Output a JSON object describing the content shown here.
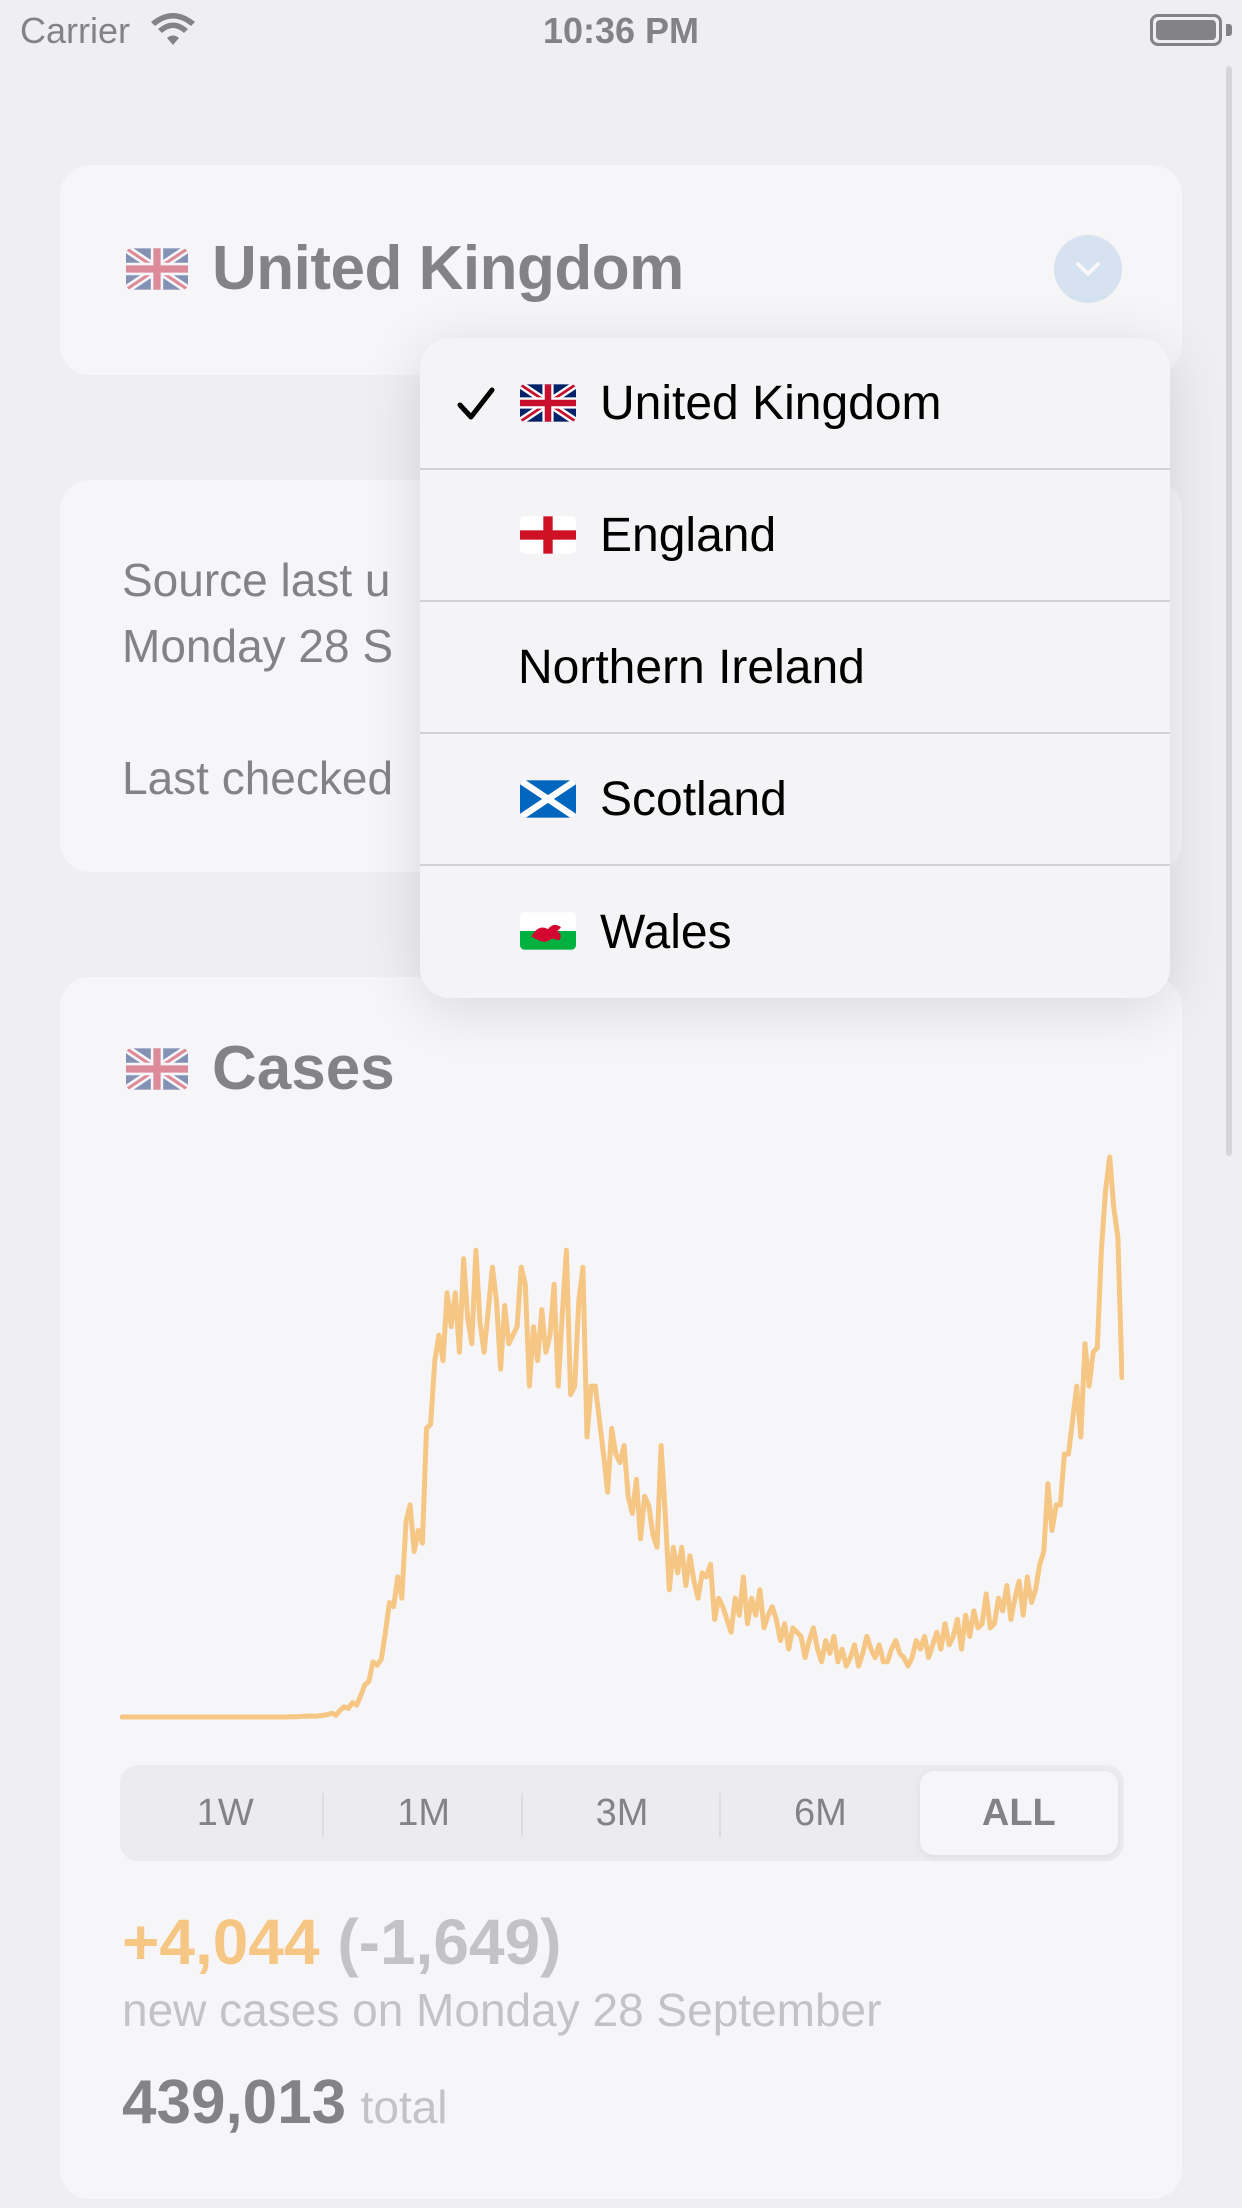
{
  "status_bar": {
    "carrier": "Carrier",
    "time": "10:36 PM"
  },
  "header": {
    "country": "United Kingdom",
    "flag_icon": "uk-flag-icon",
    "dropdown_icon": "chevron-down-icon"
  },
  "info": {
    "source_line_1": "Source last u",
    "source_line_2": "Monday 28 S",
    "last_checked": "Last checked"
  },
  "menu": {
    "items": [
      {
        "label": "United Kingdom",
        "icon": "uk-flag-icon",
        "selected": true
      },
      {
        "label": "England",
        "icon": "england-flag-icon",
        "selected": false
      },
      {
        "label": "Northern Ireland",
        "icon": "",
        "selected": false
      },
      {
        "label": "Scotland",
        "icon": "scotland-flag-icon",
        "selected": false
      },
      {
        "label": "Wales",
        "icon": "wales-flag-icon",
        "selected": false
      }
    ]
  },
  "cases": {
    "title": "Cases",
    "ranges": [
      "1W",
      "1M",
      "3M",
      "6M",
      "ALL"
    ],
    "selected_range": "ALL",
    "delta": "+4,044",
    "delta_change": "(-1,649)",
    "subtitle": "new cases on Monday 28 September",
    "total": "439,013",
    "total_label": "total"
  },
  "colors": {
    "accent_orange": "#ff9500",
    "secondary_gray": "#8e8e93",
    "chevron_bg": "#b9d3ee"
  },
  "chart_data": {
    "type": "line",
    "x_start": "2020-02-01",
    "x_end": "2020-09-28",
    "values": [
      0,
      0,
      0,
      0,
      0,
      0,
      0,
      0,
      0,
      0,
      0,
      0,
      0,
      0,
      0,
      0,
      0,
      0,
      0,
      0,
      0,
      0,
      0,
      0,
      0,
      0,
      0,
      0,
      0,
      0,
      0,
      0,
      0,
      0,
      0,
      0,
      0,
      0,
      0,
      0,
      0,
      2,
      3,
      5,
      8,
      10,
      12,
      8,
      15,
      20,
      30,
      45,
      20,
      80,
      120,
      100,
      170,
      140,
      250,
      380,
      420,
      650,
      610,
      680,
      1000,
      1350,
      1300,
      1650,
      1400,
      2300,
      2500,
      1950,
      2200,
      2050,
      3400,
      3450,
      4200,
      4500,
      4200,
      5000,
      4600,
      5000,
      4300,
      5400,
      4700,
      4400,
      5500,
      4650,
      4300,
      4800,
      5300,
      4900,
      4100,
      4850,
      4400,
      4500,
      4600,
      5300,
      5100,
      3900,
      4600,
      4200,
      4800,
      4300,
      4500,
      5100,
      3900,
      4750,
      5500,
      3800,
      3900,
      4900,
      5300,
      3300,
      3900,
      3900,
      3500,
      3100,
      2650,
      3400,
      3100,
      3000,
      3200,
      2600,
      2400,
      2800,
      2100,
      2600,
      2500,
      2150,
      2000,
      3200,
      2400,
      1500,
      2000,
      1700,
      2000,
      1550,
      1900,
      1600,
      1400,
      1700,
      1650,
      1800,
      1150,
      1400,
      1300,
      1150,
      1000,
      1400,
      1200,
      1650,
      1100,
      1400,
      1200,
      1500,
      1050,
      1200,
      1300,
      1150,
      900,
      1100,
      800,
      1050,
      1000,
      950,
      700,
      900,
      1050,
      800,
      650,
      900,
      750,
      950,
      650,
      800,
      600,
      700,
      850,
      600,
      750,
      950,
      800,
      700,
      850,
      650,
      650,
      800,
      900,
      750,
      700,
      600,
      700,
      900,
      800,
      950,
      700,
      850,
      1000,
      800,
      1100,
      850,
      950,
      1150,
      800,
      1200,
      950,
      1250,
      1050,
      1100,
      1450,
      1050,
      1100,
      1400,
      1250,
      1550,
      1150,
      1400,
      1600,
      1200,
      1650,
      1350,
      1500,
      1800,
      1950,
      2750,
      2200,
      2500,
      2500,
      3100,
      3100,
      3500,
      3900,
      3300,
      4400,
      3900,
      4300,
      4350,
      5500,
      6200,
      6600,
      6000,
      5650,
      4000
    ]
  }
}
